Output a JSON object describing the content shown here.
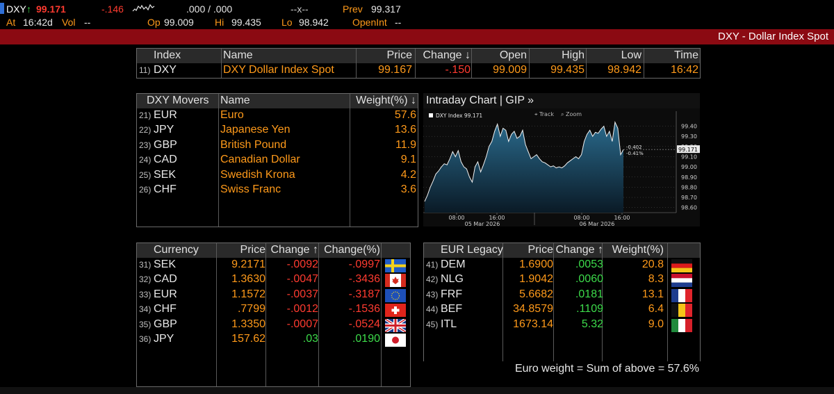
{
  "top": {
    "ticker": "DXY",
    "arrow": "↑",
    "last": "99.171",
    "change": "-.146",
    "bidask": ".000 / .000",
    "size": "--x--",
    "prev_label": "Prev",
    "prev": "99.317",
    "at_label": "At",
    "time": "16:42d",
    "vol_label": "Vol",
    "vol": "--",
    "op_label": "Op",
    "op": "99.009",
    "hi_label": "Hi",
    "hi": "99.435",
    "lo_label": "Lo",
    "lo": "98.942",
    "openint_label": "OpenInt",
    "openint": "--"
  },
  "title": "DXY - Dollar Index Spot",
  "index_table": {
    "headers": [
      "Index",
      "Name",
      "Price",
      "Change ↓",
      "Open",
      "High",
      "Low",
      "Time"
    ],
    "row": {
      "num": "11)",
      "code": "DXY",
      "name": "DXY Dollar Index Spot",
      "price": "99.167",
      "change": "-.150",
      "open": "99.009",
      "high": "99.435",
      "low": "98.942",
      "time": "16:42"
    }
  },
  "movers": {
    "headers": [
      "DXY Movers",
      "Name",
      "Weight(%) ↓"
    ],
    "rows": [
      {
        "num": "21)",
        "code": "EUR",
        "name": "Euro",
        "weight": "57.6"
      },
      {
        "num": "22)",
        "code": "JPY",
        "name": "Japanese Yen",
        "weight": "13.6"
      },
      {
        "num": "23)",
        "code": "GBP",
        "name": "British Pound",
        "weight": "11.9"
      },
      {
        "num": "24)",
        "code": "CAD",
        "name": "Canadian Dollar",
        "weight": "9.1"
      },
      {
        "num": "25)",
        "code": "SEK",
        "name": "Swedish Krona",
        "weight": "4.2"
      },
      {
        "num": "26)",
        "code": "CHF",
        "name": "Swiss Franc",
        "weight": "3.6"
      }
    ]
  },
  "chart_panel": {
    "title": "Intraday Chart | GIP »",
    "legend": "DXY Index 99.171",
    "track": "Track",
    "zoom": "Zoom",
    "last_tag": "99.171",
    "chg_tag": "-0.402",
    "pct_tag": "-0.41%"
  },
  "chart_data": {
    "type": "area",
    "title": "",
    "xlabel": "",
    "ylabel": "",
    "ylim": [
      98.55,
      99.52
    ],
    "yticks": [
      "99.40",
      "99.30",
      "99.20",
      "99.10",
      "99.00",
      "98.90",
      "98.80",
      "98.70",
      "98.60"
    ],
    "xticks": [
      "08:00",
      "16:00",
      "08:00",
      "16:00"
    ],
    "date_labels": [
      "05 Mar 2026",
      "06 Mar 2026"
    ],
    "series": [
      {
        "name": "DXY Index",
        "values": [
          98.66,
          98.72,
          98.8,
          98.86,
          98.93,
          98.96,
          99.0,
          99.03,
          99.02,
          99.08,
          99.15,
          99.1,
          99.16,
          99.05,
          99.0,
          98.98,
          98.9,
          98.85,
          99.0,
          99.05,
          98.95,
          99.02,
          99.1,
          99.2,
          99.25,
          99.35,
          99.42,
          99.3,
          99.38,
          99.36,
          99.25,
          99.32,
          99.35,
          99.28,
          99.3,
          99.36,
          99.22,
          99.15,
          99.08,
          99.1,
          99.12,
          99.08,
          99.05,
          99.04,
          99.02,
          99.0,
          99.01,
          98.99,
          99.0,
          98.99,
          99.01,
          99.04,
          99.06,
          99.08,
          99.1,
          99.08,
          99.12,
          99.25,
          99.32,
          99.36,
          99.3,
          99.34,
          99.33,
          99.37,
          99.4,
          99.3,
          99.35,
          99.25,
          99.44,
          99.38,
          99.12,
          99.17
        ]
      }
    ]
  },
  "currency": {
    "headers": [
      "Currency",
      "Price",
      "Change ↑",
      "Change(%)"
    ],
    "rows": [
      {
        "num": "31)",
        "code": "SEK",
        "price": "9.2171",
        "change": "-.0092",
        "pct": "-.0997",
        "flag": "sweden-flag-icon"
      },
      {
        "num": "32)",
        "code": "CAD",
        "price": "1.3630",
        "change": "-.0047",
        "pct": "-.3436",
        "flag": "canada-flag-icon"
      },
      {
        "num": "33)",
        "code": "EUR",
        "price": "1.1572",
        "change": "-.0037",
        "pct": "-.3187",
        "flag": "eu-flag-icon"
      },
      {
        "num": "34)",
        "code": "CHF",
        "price": ".7799",
        "change": "-.0012",
        "pct": "-.1536",
        "flag": "switzerland-flag-icon"
      },
      {
        "num": "35)",
        "code": "GBP",
        "price": "1.3350",
        "change": "-.0007",
        "pct": "-.0524",
        "flag": "uk-flag-icon"
      },
      {
        "num": "36)",
        "code": "JPY",
        "price": "157.62",
        "change": ".03",
        "pct": ".0190",
        "flag": "japan-flag-icon"
      }
    ]
  },
  "eur_legacy": {
    "headers": [
      "EUR Legacy",
      "Price",
      "Change ↑",
      "Weight(%)"
    ],
    "rows": [
      {
        "num": "41)",
        "code": "DEM",
        "price": "1.6900",
        "change": ".0053",
        "weight": "20.8",
        "flag": "germany-flag-icon"
      },
      {
        "num": "42)",
        "code": "NLG",
        "price": "1.9042",
        "change": ".0060",
        "weight": "8.3",
        "flag": "netherlands-flag-icon"
      },
      {
        "num": "43)",
        "code": "FRF",
        "price": "5.6682",
        "change": ".0181",
        "weight": "13.1",
        "flag": "france-flag-icon"
      },
      {
        "num": "44)",
        "code": "BEF",
        "price": "34.8579",
        "change": ".1109",
        "weight": "6.4",
        "flag": "belgium-flag-icon"
      },
      {
        "num": "45)",
        "code": "ITL",
        "price": "1673.14",
        "change": "5.32",
        "weight": "9.0",
        "flag": "italy-flag-icon"
      }
    ],
    "footer": "Euro weight = Sum of above = 57.6%"
  },
  "colors": {
    "accent": "#ff9a1a",
    "negative": "#ff3b30",
    "positive": "#3ddc4b",
    "title_bar": "#8b0a12"
  }
}
